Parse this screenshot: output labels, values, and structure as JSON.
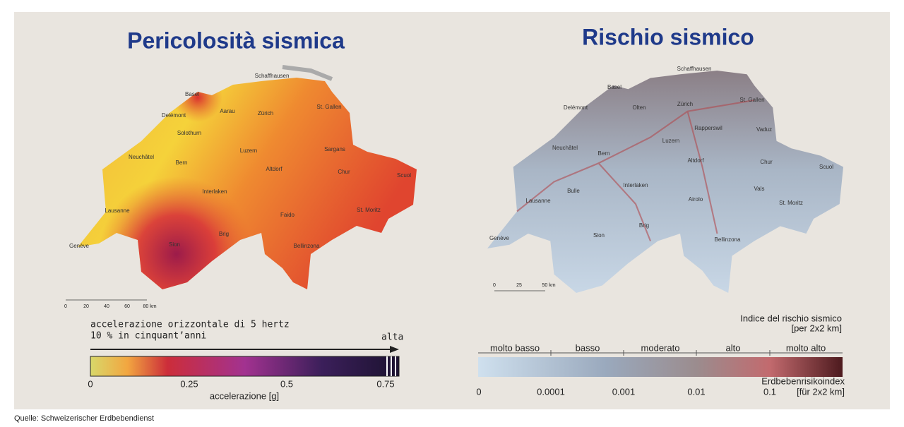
{
  "left": {
    "title": "Pericolosità sismica",
    "cities": [
      "Schaffhausen",
      "Basel",
      "Delémont",
      "Aarau",
      "Zürich",
      "St. Gallen",
      "Solothurn",
      "Neuchâtel",
      "Bern",
      "Luzern",
      "Sargans",
      "Altdorf",
      "Chur",
      "Scuol",
      "Interlaken",
      "Lausanne",
      "Faido",
      "St. Moritz",
      "Brig",
      "Sion",
      "Genève",
      "Bellinzona"
    ],
    "scale": [
      "0",
      "20",
      "40",
      "60",
      "80 km"
    ],
    "legend": {
      "line1": "accelerazione orizzontale di 5 hertz",
      "line2": "10 % in cinquant’anni",
      "high": "alta",
      "ticks": [
        "0",
        "0.25",
        "0.5",
        "0.75"
      ],
      "axis_label": "accelerazione [g]"
    }
  },
  "right": {
    "title": "Rischio sismico",
    "cities": [
      "Schaffhausen",
      "Basel",
      "Delémont",
      "Olten",
      "Zürich",
      "St. Gallen",
      "Rapperswil",
      "Vaduz",
      "Neuchâtel",
      "Bern",
      "Luzern",
      "Altdorf",
      "Chur",
      "Scuol",
      "Interlaken",
      "Bulle",
      "Vals",
      "Airolo",
      "St. Moritz",
      "Lausanne",
      "Brig",
      "Sion",
      "Bellinzona",
      "Genève"
    ],
    "scale": [
      "0",
      "25",
      "50 km"
    ],
    "legend": {
      "title": "Indice del rischio sismico",
      "unit": "[per 2x2 km]",
      "classes": [
        "molto basso",
        "basso",
        "moderato",
        "alto",
        "molto alto"
      ],
      "ticks": [
        "0",
        "0.0001",
        "0.001",
        "0.01",
        "0.1"
      ],
      "inner_label": "Erdbebenrisikoindex",
      "inner_unit": "[für 2x2 km]"
    }
  },
  "source": "Quelle: Schweizerischer Erdbebendienst"
}
